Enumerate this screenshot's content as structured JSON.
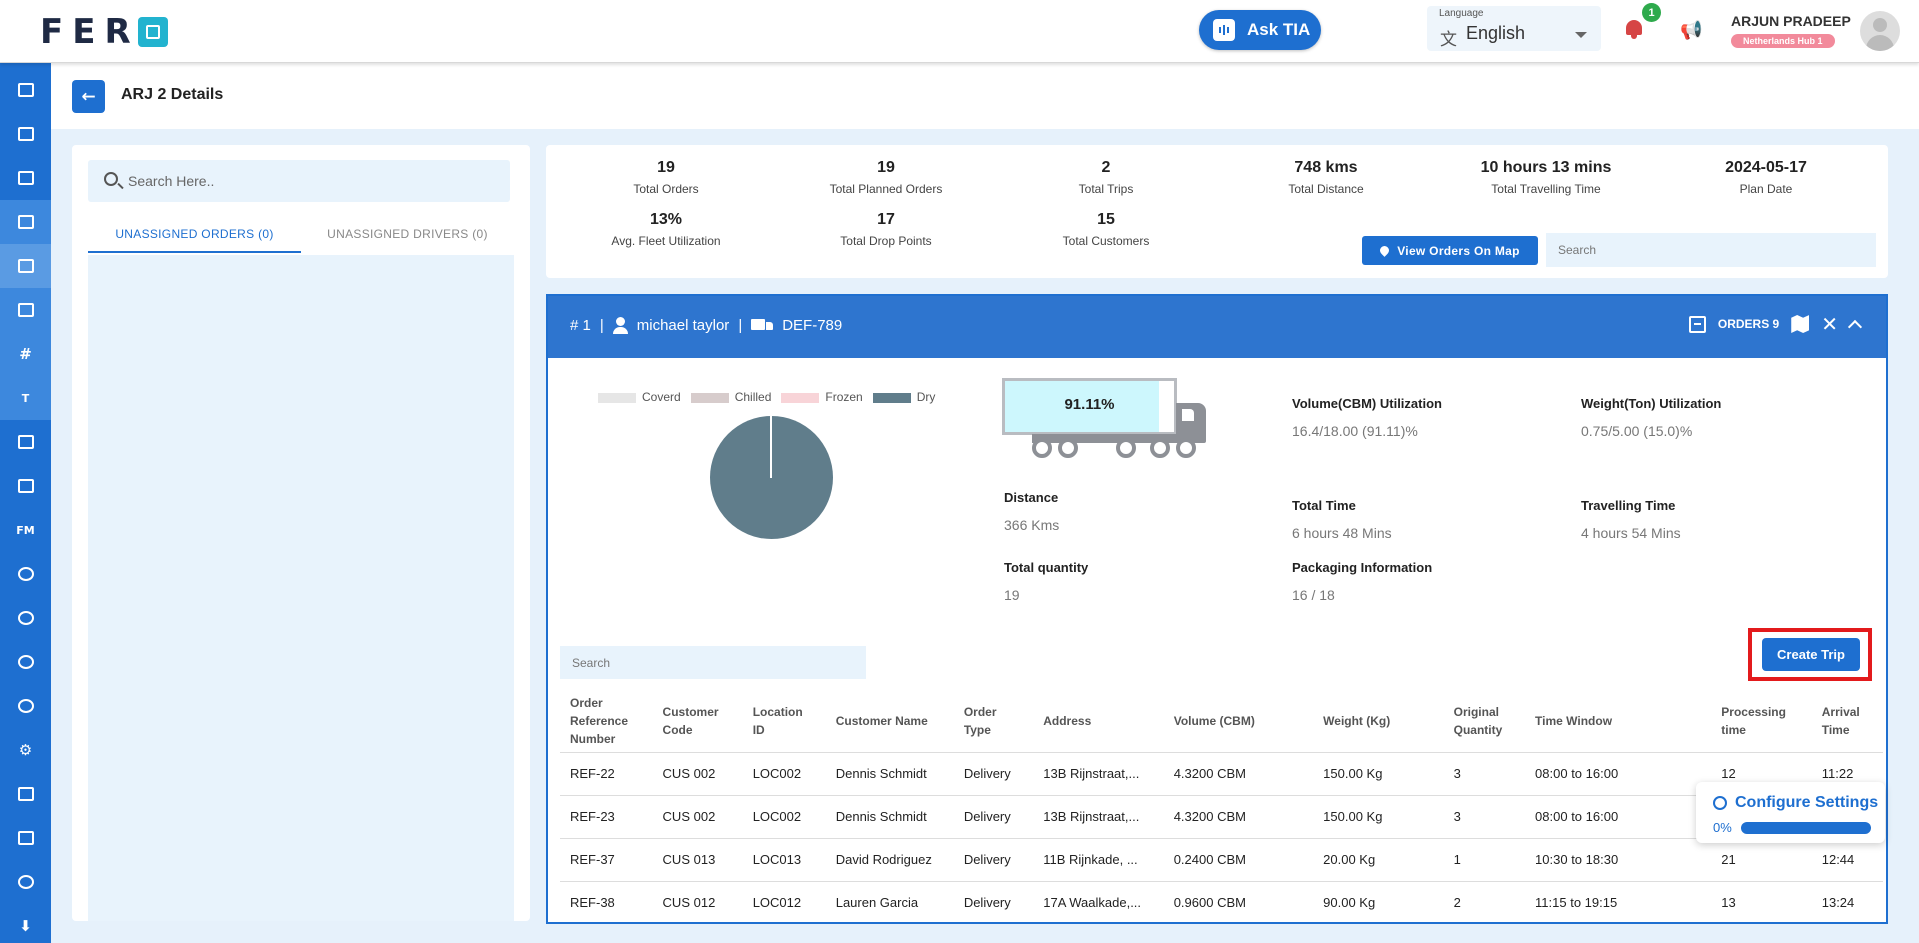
{
  "header": {
    "logo": "FERO",
    "ask_tia": "Ask TIA",
    "language_label": "Language",
    "language_value": "English",
    "notification_count": "1",
    "user_name": "ARJUN PRADEEP",
    "user_hub": "Netherlands Hub 1"
  },
  "sidebar": {
    "items": [
      {
        "icon": "dashboard-icon"
      },
      {
        "icon": "analytics-icon"
      },
      {
        "icon": "planning-icon"
      },
      {
        "icon": "orders-icon"
      },
      {
        "icon": "fleet-trucks-icon"
      },
      {
        "icon": "routes-icon"
      },
      {
        "icon": "grid-icon"
      },
      {
        "icon": "t-icon",
        "label": "T"
      },
      {
        "icon": "delivery-truck-icon"
      },
      {
        "icon": "archive-icon"
      },
      {
        "icon": "fm-icon",
        "label": "FM"
      },
      {
        "icon": "users-icon"
      },
      {
        "icon": "info-icon"
      },
      {
        "icon": "groups-icon"
      },
      {
        "icon": "support-icon"
      },
      {
        "icon": "settings-icon"
      },
      {
        "icon": "notes-icon"
      },
      {
        "icon": "clipboard-icon"
      },
      {
        "icon": "account-icon"
      },
      {
        "icon": "download-icon"
      }
    ]
  },
  "page": {
    "title": "ARJ 2 Details"
  },
  "left_panel": {
    "search_placeholder": "Search Here..",
    "tabs": [
      "UNASSIGNED ORDERS (0)",
      "UNASSIGNED DRIVERS (0)"
    ]
  },
  "stats": {
    "total_orders": {
      "value": "19",
      "label": "Total Orders"
    },
    "total_planned_orders": {
      "value": "19",
      "label": "Total Planned Orders"
    },
    "total_trips": {
      "value": "2",
      "label": "Total Trips"
    },
    "total_distance": {
      "value": "748 kms",
      "label": "Total Distance"
    },
    "total_travelling_time": {
      "value": "10 hours 13 mins",
      "label": "Total Travelling Time"
    },
    "plan_date": {
      "value": "2024-05-17",
      "label": "Plan Date"
    },
    "avg_fleet_utilization": {
      "value": "13%",
      "label": "Avg. Fleet Utilization"
    },
    "total_drop_points": {
      "value": "17",
      "label": "Total Drop Points"
    },
    "total_customers": {
      "value": "15",
      "label": "Total Customers"
    },
    "view_map_label": "View Orders On Map",
    "search_placeholder": "Search"
  },
  "trip": {
    "number": "# 1",
    "separator": "|",
    "driver": "michael taylor",
    "vehicle": "DEF-789",
    "orders_label": "ORDERS 9",
    "legend": [
      {
        "name": "Coverd",
        "color": "#e6e6e6"
      },
      {
        "name": "Chilled",
        "color": "#d7cccc"
      },
      {
        "name": "Frozen",
        "color": "#f8d4d8"
      },
      {
        "name": "Dry",
        "color": "#607d8b"
      }
    ],
    "capacity_fill": 0.9111,
    "capacity_label": "91.11%",
    "volume_title": "Volume(CBM) Utilization",
    "volume_value": "16.4/18.00 (91.11)%",
    "weight_title": "Weight(Ton) Utilization",
    "weight_value": "0.75/5.00 (15.0)%",
    "distance_title": "Distance",
    "distance_value": "366 Kms",
    "total_time_title": "Total Time",
    "total_time_value": "6 hours 48 Mins",
    "travelling_time_title": "Travelling Time",
    "travelling_time_value": "4 hours 54 Mins",
    "total_quantity_title": "Total quantity",
    "total_quantity_value": "19",
    "packaging_title": "Packaging Information",
    "packaging_value": "16 / 18",
    "create_trip_label": "Create Trip",
    "search_placeholder": "Search"
  },
  "orders_table": {
    "headers": [
      "Order Reference Number",
      "Customer Code",
      "Location ID",
      "Customer Name",
      "Order Type",
      "Address",
      "Volume (CBM)",
      "Weight (Kg)",
      "Original Quantity",
      "Time Window",
      "Processing time",
      "Arrival Time"
    ],
    "rows": [
      [
        "REF-22",
        "CUS 002",
        "LOC002",
        "Dennis Schmidt",
        "Delivery",
        "13B Rijnstraat,...",
        "4.3200 CBM",
        "150.00 Kg",
        "3",
        "08:00 to 16:00",
        "12",
        "11:22"
      ],
      [
        "REF-23",
        "CUS 002",
        "LOC002",
        "Dennis Schmidt",
        "Delivery",
        "13B Rijnstraat,...",
        "4.3200 CBM",
        "150.00 Kg",
        "3",
        "08:00 to 16:00",
        "",
        ""
      ],
      [
        "REF-37",
        "CUS 013",
        "LOC013",
        "David Rodriguez",
        "Delivery",
        "11B Rijnkade, ...",
        "0.2400 CBM",
        "20.00 Kg",
        "1",
        "10:30 to 18:30",
        "21",
        "12:44"
      ],
      [
        "REF-38",
        "CUS 012",
        "LOC012",
        "Lauren Garcia",
        "Delivery",
        "17A Waalkade,...",
        "0.9600 CBM",
        "90.00 Kg",
        "2",
        "11:15 to 19:15",
        "13",
        "13:24"
      ]
    ]
  },
  "config_settings": {
    "title": "Configure Settings",
    "percent": "0%",
    "progress": 0
  }
}
